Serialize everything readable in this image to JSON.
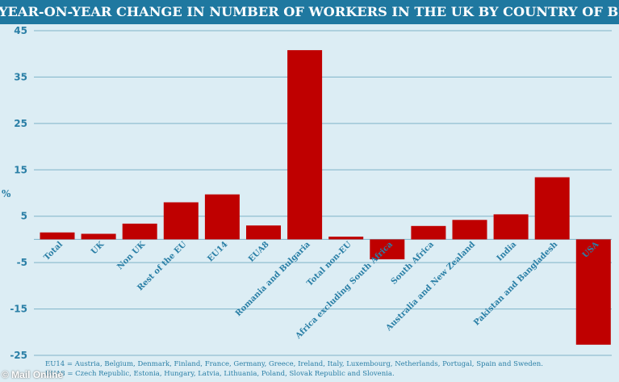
{
  "chart_data": {
    "type": "bar",
    "title": "YEAR-ON-YEAR CHANGE IN NUMBER OF WORKERS IN THE UK BY COUNTRY OF BIRTH",
    "ylabel": "%",
    "xlabel": "",
    "ylim": [
      -25,
      45
    ],
    "yticks": [
      -25,
      -15,
      -5,
      5,
      15,
      25,
      35,
      45
    ],
    "grid": true,
    "categories": [
      "Total",
      "UK",
      "Non UK",
      "Rest of the EU",
      "EU14",
      "EUA8",
      "Romania and Bulgaria",
      "Total non-EU",
      "Africa excluding South Africa",
      "South Africa",
      "Australia and New Zealand",
      "India",
      "Pakistan and Bangladesh",
      "USA"
    ],
    "values": [
      1.5,
      1.2,
      3.4,
      8.0,
      9.7,
      3.0,
      40.8,
      0.6,
      -4.3,
      2.9,
      4.2,
      5.4,
      13.4,
      -22.7
    ],
    "bar_color": "#bf0000",
    "axis_text_color": "#2a7fa6",
    "grid_color": "#7fb3c8"
  },
  "footnotes": {
    "eu14": "EU14 = Austria, Belgium, Denmark, Finland, France, Germany, Greece, Ireland, Italy, Luxembourg, Netherlands, Portugal, Spain and Sweden.",
    "eua8": "EUA8 = Czech Republic, Estonia, Hungary, Latvia, Lithuania, Poland, Slovak Republic and Slovenia."
  },
  "watermark": "© Mail Online"
}
